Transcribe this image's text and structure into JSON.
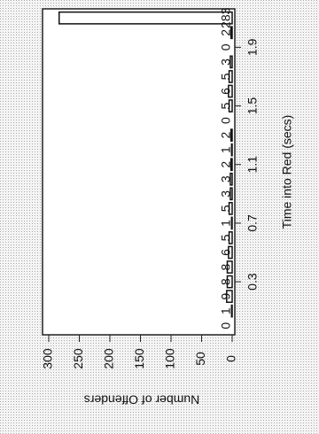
{
  "chart_data": {
    "type": "bar",
    "x_label": "Time into Red (secs)",
    "y_label": "Number of Offenders",
    "categories": [
      null,
      null,
      null,
      "0.3",
      null,
      null,
      null,
      "0.7",
      null,
      null,
      null,
      "1.1",
      null,
      null,
      null,
      "1.5",
      null,
      null,
      null,
      "1.9",
      null,
      null
    ],
    "values": [
      0,
      1,
      9,
      8,
      8,
      6,
      5,
      1,
      5,
      3,
      3,
      2,
      1,
      2,
      0,
      5,
      6,
      5,
      3,
      0,
      2,
      283
    ],
    "color": "#ffffff",
    "ylim": [
      0,
      300
    ],
    "yticks": [
      0,
      50,
      100,
      150,
      200,
      250,
      300
    ]
  }
}
